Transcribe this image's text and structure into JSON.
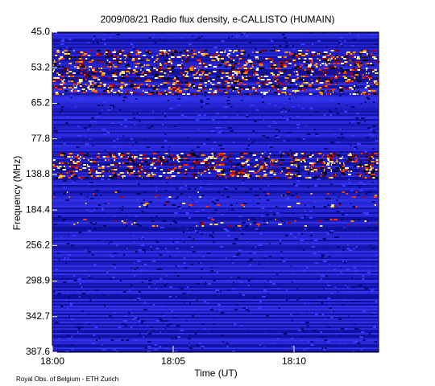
{
  "chart_data": {
    "type": "spectrogram",
    "title": "2009/08/21  Radio flux density, e-CALLISTO (HUMAIN)",
    "y_label": "Frequency (MHz)",
    "x_label": "Time (UT)",
    "footer": "Royal Obs. of Belgium - ETH Zurich",
    "y_categories": [
      "45.0",
      "53.2",
      "65.2",
      "77.8",
      "138.8",
      "184.4",
      "256.2",
      "298.9",
      "342.7",
      "387.6"
    ],
    "xlim": [
      0,
      13.5
    ],
    "xticks": [
      {
        "value": 0,
        "label": "18:00"
      },
      {
        "value": 5,
        "label": "18:05"
      },
      {
        "value": 10,
        "label": "18:10"
      }
    ]
  }
}
